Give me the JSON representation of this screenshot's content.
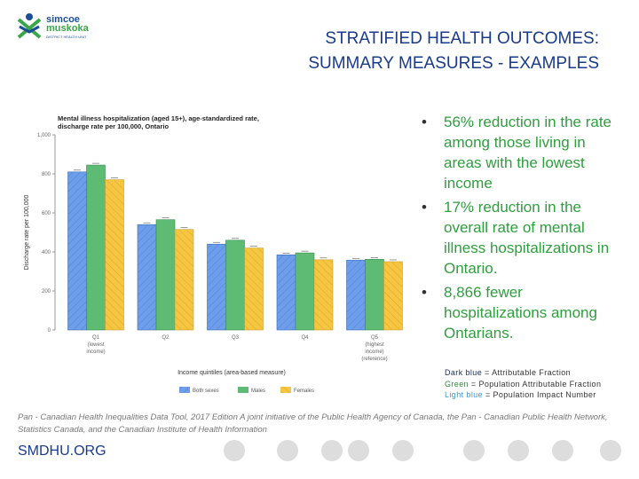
{
  "logo": {
    "line1": "simcoe",
    "line2": "muskoka",
    "line3": "DISTRICT HEALTH UNIT"
  },
  "title": {
    "line1": "STRATIFIED HEALTH OUTCOMES:",
    "line2": "SUMMARY MEASURES - EXAMPLES"
  },
  "bullets": [
    "56% reduction in the rate among those living in areas with the lowest income",
    "17% reduction in the overall rate of mental illness hospitalizations in Ontario.",
    "8,866 fewer hospitalizations among Ontarians."
  ],
  "bullet_symbol": "•",
  "notes": [
    {
      "key": "Dark blue",
      "rest": " = Attributable Fraction",
      "color": "#1a2e5a"
    },
    {
      "key": "Green",
      "rest": " = Population Attributable Fraction",
      "color": "#2e8b3e"
    },
    {
      "key": "Light blue",
      "rest": " = Population Impact Number",
      "color": "#3a9ad0"
    }
  ],
  "source": "Pan - Canadian Health Inequalities Data Tool, 2017 Edition A joint initiative of the Public Health Agency of Canada, the Pan - Canadian Public Health Network, Statistics Canada, and the Canadian Institute of Health Information",
  "site": "SMDHU.ORG",
  "chart_data": {
    "type": "bar",
    "title": "Mental illness hospitalization (aged 15+), age-standardized rate, discharge rate per 100,000, Ontario",
    "xlabel": "Income quintiles (area-based measure)",
    "ylabel": "Discharge rate per 100,000",
    "ylim": [
      0,
      1000
    ],
    "yticks": [
      "0",
      "200",
      "400",
      "600",
      "800",
      "1,000"
    ],
    "categories": [
      [
        "Q1",
        "(lowest",
        "income)"
      ],
      [
        "Q2"
      ],
      [
        "Q3"
      ],
      [
        "Q4"
      ],
      [
        "Q5",
        "(highest",
        "income)",
        "(reference)"
      ]
    ],
    "series": [
      {
        "name": "Both sexes",
        "values": [
          810,
          540,
          440,
          385,
          358
        ],
        "color": "#6d9eeb"
      },
      {
        "name": "Males",
        "values": [
          845,
          565,
          460,
          395,
          362
        ],
        "color": "#5dbb73"
      },
      {
        "name": "Females",
        "values": [
          770,
          515,
          420,
          360,
          350
        ],
        "color": "#f6c642"
      }
    ],
    "legend": "bottom"
  }
}
